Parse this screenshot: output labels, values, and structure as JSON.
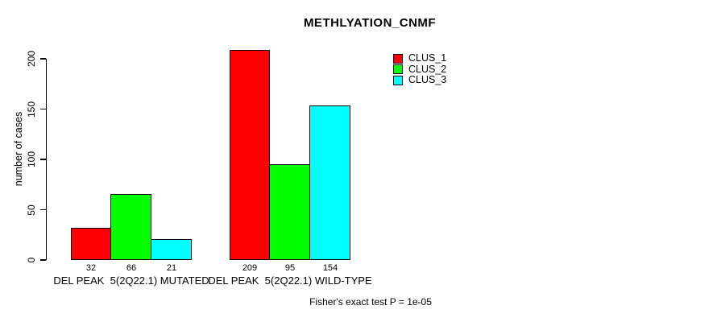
{
  "chart_data": {
    "type": "bar",
    "title": "METHLYATION_CNMF",
    "ylabel": "number of cases",
    "xlabel": "",
    "ylim": [
      0,
      200
    ],
    "yticks": [
      0,
      50,
      100,
      150,
      200
    ],
    "grid": false,
    "legend_position": "top-right",
    "categories": [
      "DEL PEAK  5(2Q22.1) MUTATED",
      "DEL PEAK  5(2Q22.1) WILD-TYPE"
    ],
    "series": [
      {
        "name": "CLUS_1",
        "color": "#FF0000",
        "values": [
          32,
          209
        ]
      },
      {
        "name": "CLUS_2",
        "color": "#00FF00",
        "values": [
          66,
          95
        ]
      },
      {
        "name": "CLUS_3",
        "color": "#00FFFF",
        "values": [
          21,
          154
        ]
      }
    ],
    "bar_value_labels": [
      [
        32,
        66,
        21
      ],
      [
        209,
        95,
        154
      ]
    ],
    "annotation": "Fisher's exact test P = 1e-05"
  }
}
